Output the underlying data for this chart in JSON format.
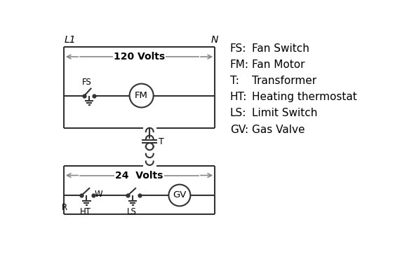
{
  "bg_color": "#ffffff",
  "line_color": "#333333",
  "arrow_color": "#888888",
  "text_color": "#000000",
  "legend_items": [
    [
      "FS:",
      "Fan Switch"
    ],
    [
      "FM:",
      "Fan Motor"
    ],
    [
      "T:",
      "Transformer"
    ],
    [
      "HT:",
      "Heating thermostat"
    ],
    [
      "LS:",
      "Limit Switch"
    ],
    [
      "GV:",
      "Gas Valve"
    ]
  ]
}
